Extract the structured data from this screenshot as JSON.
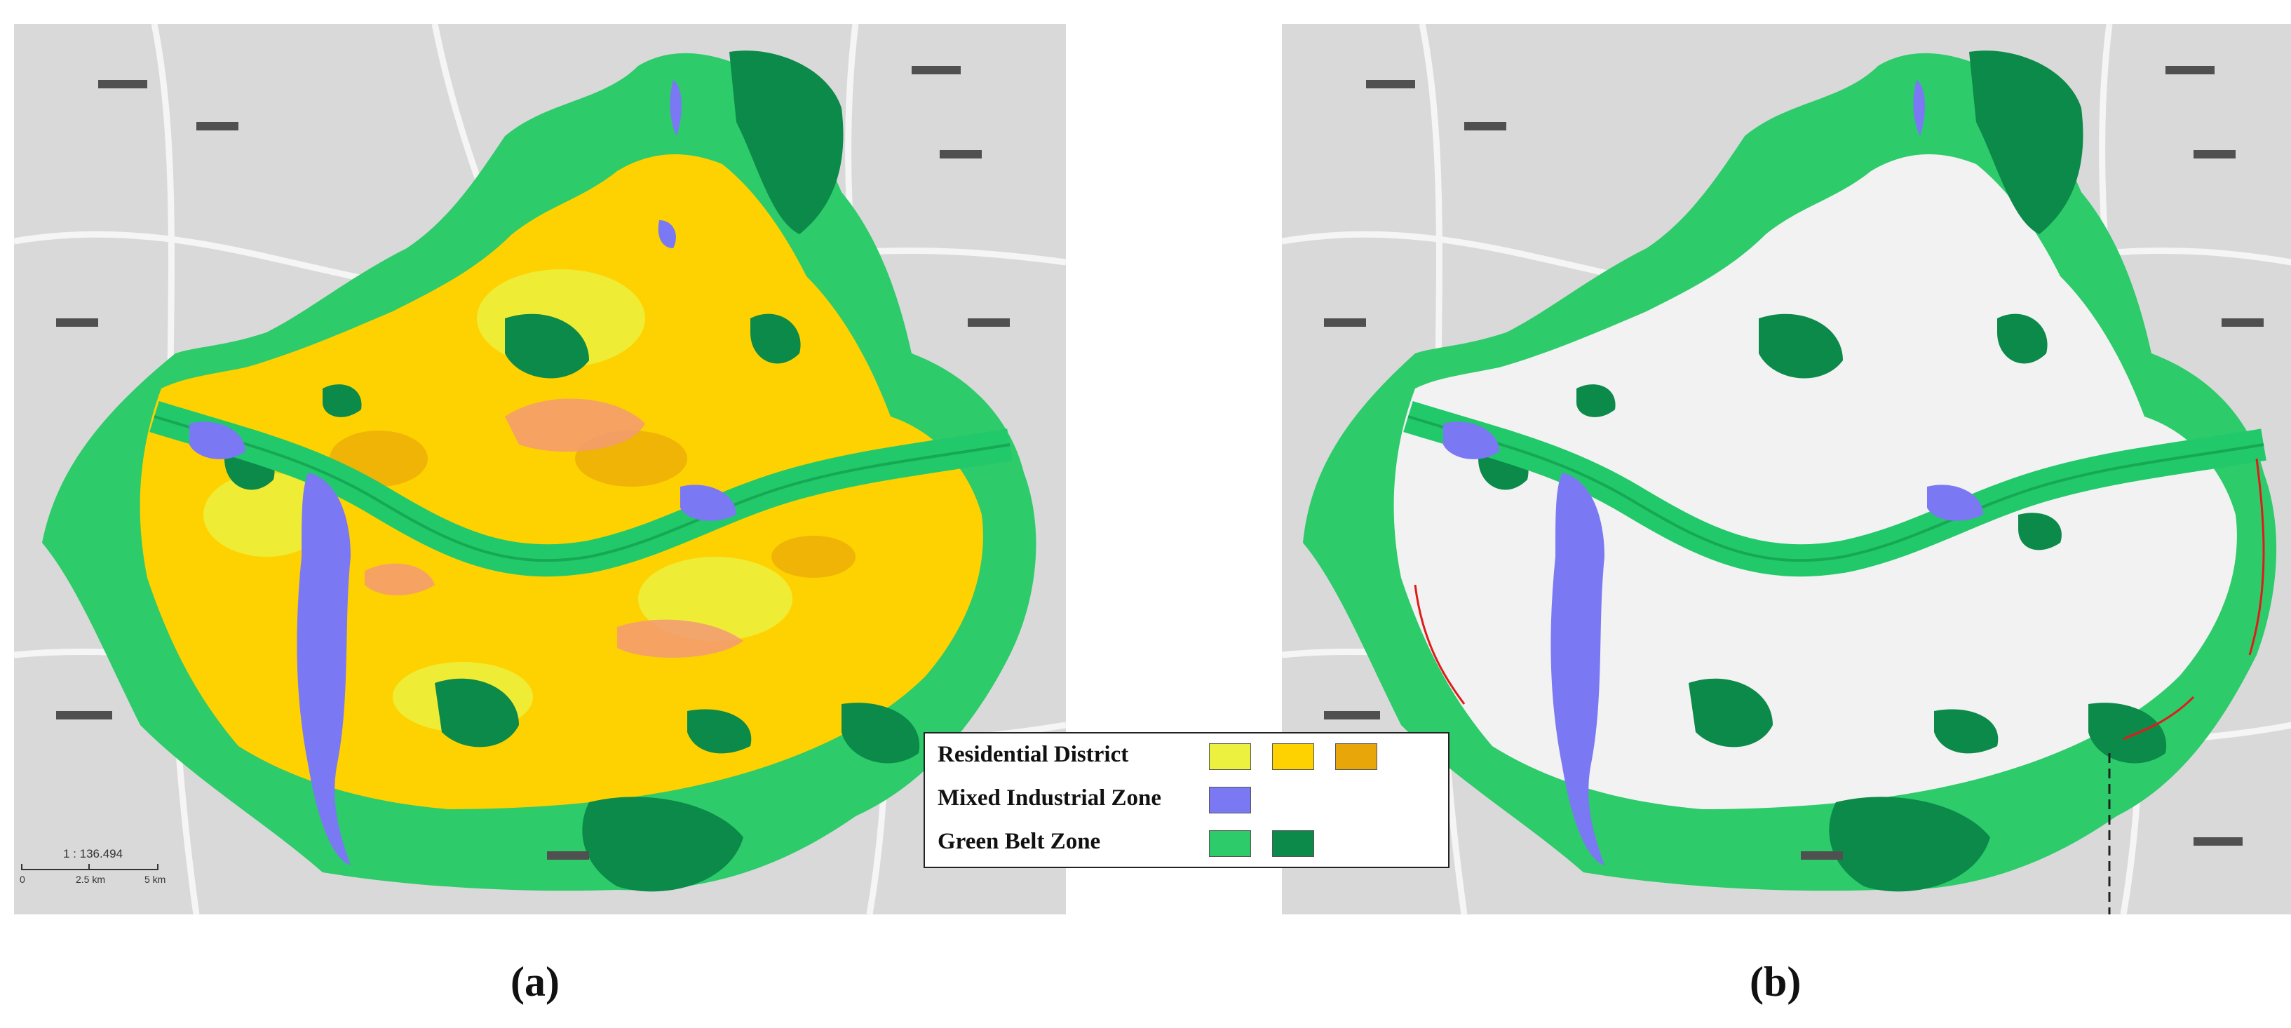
{
  "legend": {
    "rows": [
      {
        "label": "Residential District",
        "swatches": [
          "#ecf13f",
          "#fed201",
          "#e9a609"
        ]
      },
      {
        "label": "Mixed Industrial Zone",
        "swatches": [
          "#7b78f4"
        ]
      },
      {
        "label": "Green Belt Zone",
        "swatches": [
          "#2dcb6a",
          "#0b8a4a"
        ]
      }
    ]
  },
  "scalebar": {
    "ratio": "1 : 136.494",
    "ticks": [
      "0",
      "2.5 km",
      "5 km"
    ]
  },
  "captions": {
    "a": "(a)",
    "b": "(b)"
  },
  "colors": {
    "basemap": "#d9d9d9",
    "river": "#22c96a",
    "green_light": "#2dcb6a",
    "green_dark": "#0b8a4a",
    "residential_1": "#ecf13f",
    "residential_2": "#fed201",
    "residential_3": "#e9a609",
    "commercial": "#f39a74",
    "industrial": "#7b78f4",
    "urban_blank": "#f2f2f2",
    "boundary_red": "#e01b1b"
  }
}
